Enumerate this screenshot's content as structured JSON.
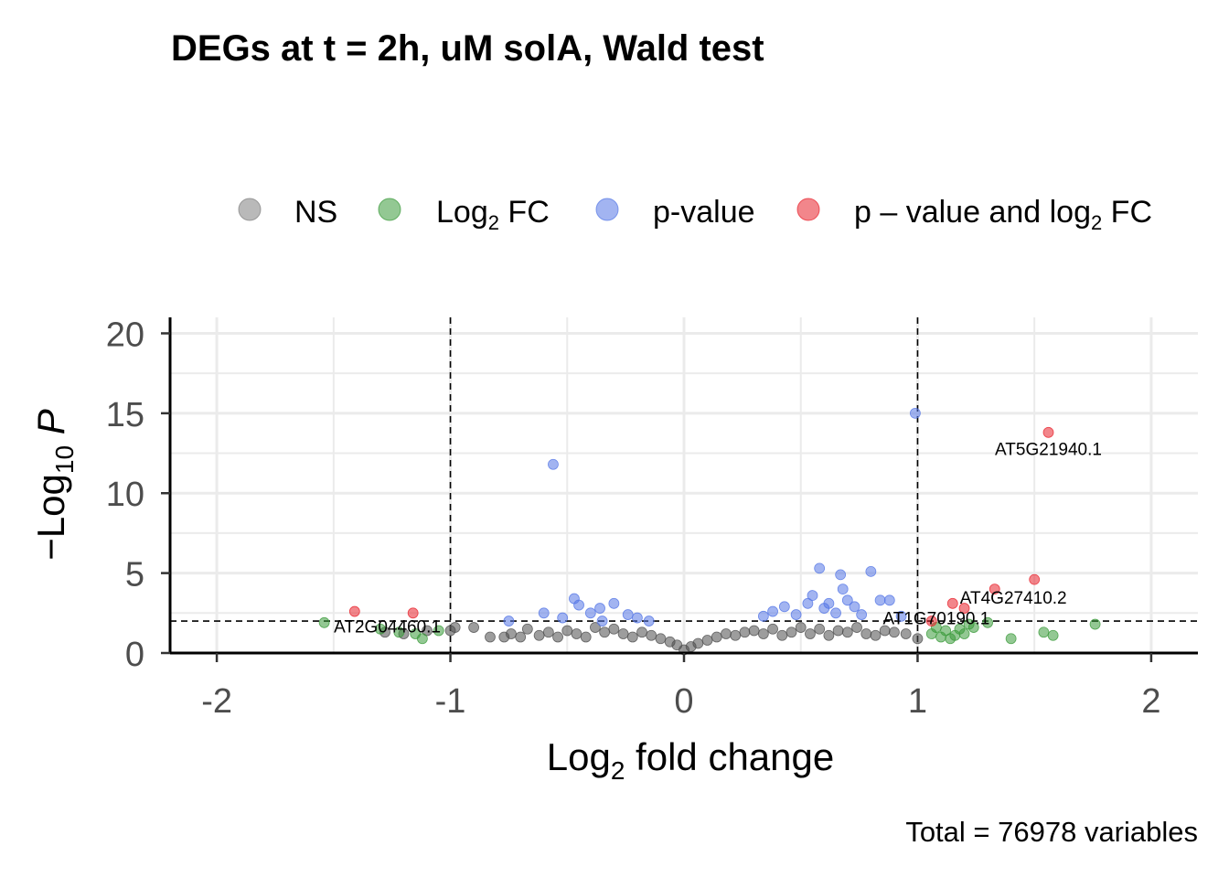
{
  "chart_data": {
    "type": "scatter",
    "title": "DEGs at t = 2h, uM solA, Wald test",
    "caption": "Total = 76978 variables",
    "xlabel": {
      "prefix": "Log",
      "sub": "2",
      "suffix": " fold change"
    },
    "ylabel": {
      "prefix": "−Log",
      "sub": "10",
      "suffix": " P"
    },
    "xlim": [
      -2.2,
      2.2
    ],
    "ylim": [
      0,
      21
    ],
    "xticks": [
      "-2",
      "-1",
      "0",
      "1",
      "2"
    ],
    "yticks": [
      "0",
      "5",
      "10",
      "15",
      "20"
    ],
    "fc_cutoff": 1,
    "p_cutoff_log10": 2,
    "grid": true,
    "legend_position": "top",
    "legend": [
      {
        "key": "ns",
        "text": "NS",
        "color": "#7f7f7f"
      },
      {
        "key": "fc",
        "text": "Log",
        "sub": "2",
        "after": " FC",
        "color": "#3a9a3a"
      },
      {
        "key": "p",
        "text": "p-value",
        "color": "#5577e6"
      },
      {
        "key": "both",
        "text": "p – value and log",
        "sub": "2",
        "after": " FC",
        "color": "#e8222c"
      }
    ],
    "series": [
      {
        "key": "ns",
        "points": [
          [
            -1.28,
            1.3
          ],
          [
            -1.2,
            1.2
          ],
          [
            -1.1,
            1.4
          ],
          [
            -1.0,
            1.4
          ],
          [
            -0.98,
            1.6
          ],
          [
            -0.9,
            1.6
          ],
          [
            -0.83,
            1.0
          ],
          [
            -0.77,
            1.0
          ],
          [
            -0.74,
            1.2
          ],
          [
            -0.7,
            1.0
          ],
          [
            -0.67,
            1.5
          ],
          [
            -0.62,
            1.1
          ],
          [
            -0.58,
            1.3
          ],
          [
            -0.54,
            1.0
          ],
          [
            -0.5,
            1.4
          ],
          [
            -0.46,
            1.2
          ],
          [
            -0.42,
            1.0
          ],
          [
            -0.38,
            1.6
          ],
          [
            -0.34,
            1.3
          ],
          [
            -0.3,
            1.5
          ],
          [
            -0.26,
            1.2
          ],
          [
            -0.22,
            1.0
          ],
          [
            -0.18,
            1.3
          ],
          [
            -0.14,
            1.1
          ],
          [
            -0.1,
            0.9
          ],
          [
            -0.06,
            0.7
          ],
          [
            -0.03,
            0.5
          ],
          [
            0.0,
            0.2
          ],
          [
            0.03,
            0.4
          ],
          [
            0.06,
            0.6
          ],
          [
            0.1,
            0.8
          ],
          [
            0.14,
            1.0
          ],
          [
            0.18,
            1.2
          ],
          [
            0.22,
            1.1
          ],
          [
            0.26,
            1.3
          ],
          [
            0.3,
            1.4
          ],
          [
            0.34,
            1.2
          ],
          [
            0.38,
            1.5
          ],
          [
            0.42,
            1.1
          ],
          [
            0.46,
            1.3
          ],
          [
            0.5,
            1.6
          ],
          [
            0.54,
            1.2
          ],
          [
            0.58,
            1.5
          ],
          [
            0.62,
            1.1
          ],
          [
            0.66,
            1.4
          ],
          [
            0.7,
            1.3
          ],
          [
            0.74,
            1.6
          ],
          [
            0.78,
            1.2
          ],
          [
            0.82,
            1.1
          ],
          [
            0.86,
            1.4
          ],
          [
            0.9,
            1.3
          ],
          [
            0.95,
            1.2
          ],
          [
            1.0,
            0.9
          ]
        ]
      },
      {
        "key": "fc",
        "points": [
          [
            -1.54,
            1.9
          ],
          [
            -1.3,
            1.5
          ],
          [
            -1.22,
            1.3
          ],
          [
            -1.15,
            1.2
          ],
          [
            -1.12,
            0.9
          ],
          [
            -1.05,
            1.4
          ],
          [
            1.06,
            1.2
          ],
          [
            1.08,
            1.6
          ],
          [
            1.1,
            1.0
          ],
          [
            1.12,
            1.4
          ],
          [
            1.14,
            0.9
          ],
          [
            1.16,
            1.1
          ],
          [
            1.18,
            1.5
          ],
          [
            1.2,
            1.2
          ],
          [
            1.22,
            1.8
          ],
          [
            1.24,
            1.6
          ],
          [
            1.3,
            1.9
          ],
          [
            1.4,
            0.9
          ],
          [
            1.54,
            1.3
          ],
          [
            1.58,
            1.1
          ],
          [
            1.76,
            1.8
          ]
        ]
      },
      {
        "key": "p",
        "points": [
          [
            -0.56,
            11.8
          ],
          [
            -0.47,
            3.4
          ],
          [
            -0.45,
            3.0
          ],
          [
            -0.4,
            2.5
          ],
          [
            -0.36,
            2.8
          ],
          [
            -0.3,
            3.1
          ],
          [
            -0.24,
            2.4
          ],
          [
            -0.2,
            2.2
          ],
          [
            -0.6,
            2.5
          ],
          [
            -0.75,
            2.0
          ],
          [
            -0.52,
            2.2
          ],
          [
            -0.35,
            2.0
          ],
          [
            -0.15,
            2.0
          ],
          [
            0.34,
            2.3
          ],
          [
            0.38,
            2.6
          ],
          [
            0.43,
            2.9
          ],
          [
            0.48,
            2.4
          ],
          [
            0.53,
            3.1
          ],
          [
            0.55,
            3.6
          ],
          [
            0.58,
            5.3
          ],
          [
            0.6,
            2.8
          ],
          [
            0.62,
            3.1
          ],
          [
            0.65,
            2.5
          ],
          [
            0.68,
            4.0
          ],
          [
            0.7,
            3.3
          ],
          [
            0.73,
            2.9
          ],
          [
            0.76,
            2.4
          ],
          [
            0.8,
            5.1
          ],
          [
            0.84,
            3.3
          ],
          [
            0.88,
            3.3
          ],
          [
            0.93,
            2.3
          ],
          [
            0.67,
            4.9
          ],
          [
            0.99,
            15.0
          ]
        ]
      },
      {
        "key": "both",
        "points": [
          [
            1.56,
            13.8
          ],
          [
            1.5,
            4.6
          ],
          [
            1.33,
            4.0
          ],
          [
            1.2,
            2.8
          ],
          [
            1.15,
            3.1
          ],
          [
            -1.41,
            2.6
          ],
          [
            -1.16,
            2.5
          ],
          [
            1.06,
            2.0
          ]
        ]
      }
    ],
    "annotations": [
      {
        "text": "AT5G21940.1",
        "x": 1.56,
        "y": 12.4
      },
      {
        "text": "AT4G27410.2",
        "x": 1.41,
        "y": 3.1
      },
      {
        "text": "AT1G70190.1",
        "x": 1.08,
        "y": 1.8
      },
      {
        "text": "AT2G04460.1",
        "x": -1.27,
        "y": 1.3
      }
    ]
  }
}
